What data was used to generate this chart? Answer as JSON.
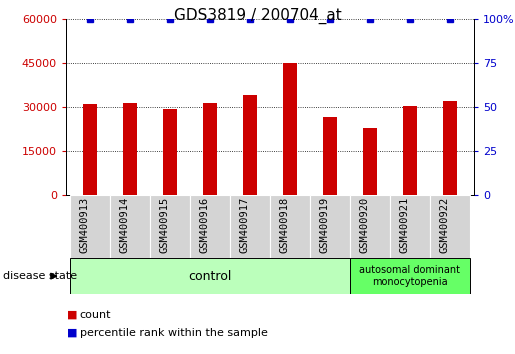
{
  "title": "GDS3819 / 200704_at",
  "categories": [
    "GSM400913",
    "GSM400914",
    "GSM400915",
    "GSM400916",
    "GSM400917",
    "GSM400918",
    "GSM400919",
    "GSM400920",
    "GSM400921",
    "GSM400922"
  ],
  "bar_values": [
    31000,
    31500,
    29500,
    31500,
    34000,
    45000,
    26500,
    23000,
    30500,
    32000
  ],
  "percentile_values": [
    100,
    100,
    100,
    100,
    100,
    100,
    100,
    100,
    100,
    100
  ],
  "bar_color": "#cc0000",
  "dot_color": "#0000cc",
  "ylim_left": [
    0,
    60000
  ],
  "ylim_right": [
    0,
    100
  ],
  "yticks_left": [
    0,
    15000,
    30000,
    45000,
    60000
  ],
  "yticks_right": [
    0,
    25,
    50,
    75,
    100
  ],
  "ytick_labels_left": [
    "0",
    "15000",
    "30000",
    "45000",
    "60000"
  ],
  "ytick_labels_right": [
    "0",
    "25",
    "50",
    "75",
    "100%"
  ],
  "group1_label": "control",
  "group2_label": "autosomal dominant\nmonocytopenia",
  "disease_state_label": "disease state",
  "legend_count_label": "count",
  "legend_percentile_label": "percentile rank within the sample",
  "bg_color": "#ffffff",
  "plot_bg_color": "#ffffff",
  "group1_bg": "#bbffbb",
  "group2_bg": "#66ff66",
  "tick_label_color_left": "#cc0000",
  "tick_label_color_right": "#0000cc",
  "xtick_cell_color": "#d4d4d4",
  "title_fontsize": 11,
  "tick_fontsize": 8,
  "bar_width": 0.35
}
